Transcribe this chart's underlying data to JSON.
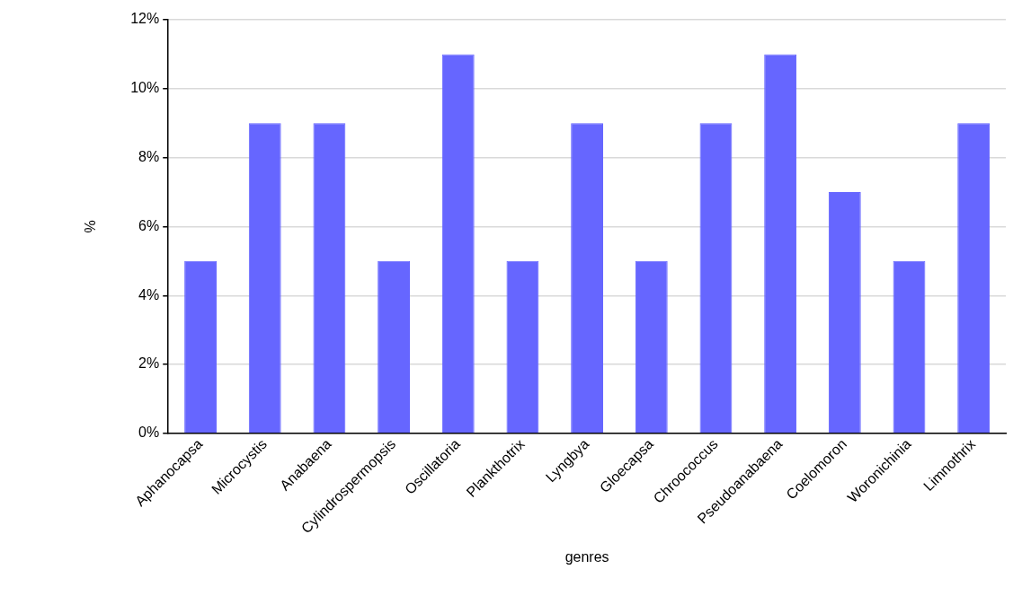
{
  "chart_data": {
    "type": "bar",
    "xlabel": "genres",
    "ylabel": "%",
    "categories": [
      "Aphanocapsa",
      "Microcystis",
      "Anabaena",
      "Cylindrospermopsis",
      "Oscillatoria",
      "Plankthotrix",
      "Lyngbya",
      "Gloecapsa",
      "Chroococcus",
      "Pseudoanabaena",
      "Coelomoron",
      "Woronichinia",
      "Limnothrix"
    ],
    "values": [
      5,
      9,
      9,
      5,
      11,
      5,
      9,
      5,
      9,
      11,
      7,
      5,
      9
    ],
    "color": "#6666ff",
    "ylim": [
      0,
      12
    ],
    "yticks": [
      {
        "value": 0,
        "label": "0%"
      },
      {
        "value": 2,
        "label": "2%"
      },
      {
        "value": 4,
        "label": "4%"
      },
      {
        "value": 6,
        "label": "6%"
      },
      {
        "value": 8,
        "label": "8%"
      },
      {
        "value": 10,
        "label": "10%"
      },
      {
        "value": 12,
        "label": "12%"
      }
    ],
    "grid": "y"
  }
}
